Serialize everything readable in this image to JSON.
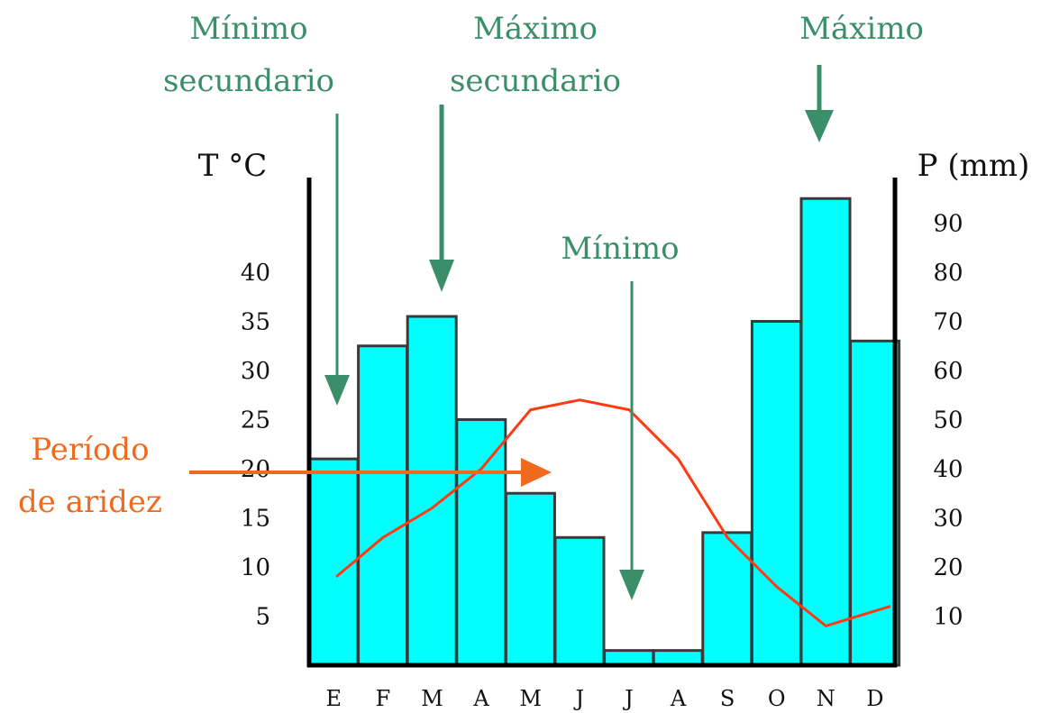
{
  "chart_data": {
    "type": "bar",
    "categories": [
      "E",
      "F",
      "M",
      "A",
      "M",
      "J",
      "J",
      "A",
      "S",
      "O",
      "N",
      "D"
    ],
    "series": [
      {
        "axis": "right",
        "values": [
          42,
          65,
          71,
          50,
          35,
          26,
          3,
          3,
          27,
          70,
          95,
          66
        ]
      },
      {
        "axis": "left",
        "values": [
          9,
          13,
          16,
          20,
          26,
          27,
          26,
          21,
          13,
          8,
          4,
          6
        ]
      }
    ],
    "colors": {
      "bars": "#00ffff",
      "bar_outline": "#3a3a3a",
      "line": "#ff3a12",
      "annotation_green": "#3a8f6a",
      "annotation_orange": "#f06a1e"
    },
    "left_axis": {
      "label": "T °C",
      "ticks": [
        "5",
        "10",
        "15",
        "20",
        "25",
        "30",
        "35",
        "40"
      ],
      "range": [
        0,
        50
      ]
    },
    "right_axis": {
      "label": "P (mm)",
      "ticks": [
        "10",
        "20",
        "30",
        "40",
        "50",
        "60",
        "70",
        "80",
        "90"
      ],
      "range": [
        0,
        100
      ]
    },
    "annotations": {
      "min_secondary": {
        "line1": "Mínimo",
        "line2": "secundario"
      },
      "max_secondary": {
        "line1": "Máximo",
        "line2": "secundario"
      },
      "max": {
        "text": "Máximo"
      },
      "min": {
        "text": "Mínimo"
      },
      "aridity": {
        "line1": "Período",
        "line2": "de aridez"
      }
    },
    "grid": false,
    "legend": "none"
  }
}
